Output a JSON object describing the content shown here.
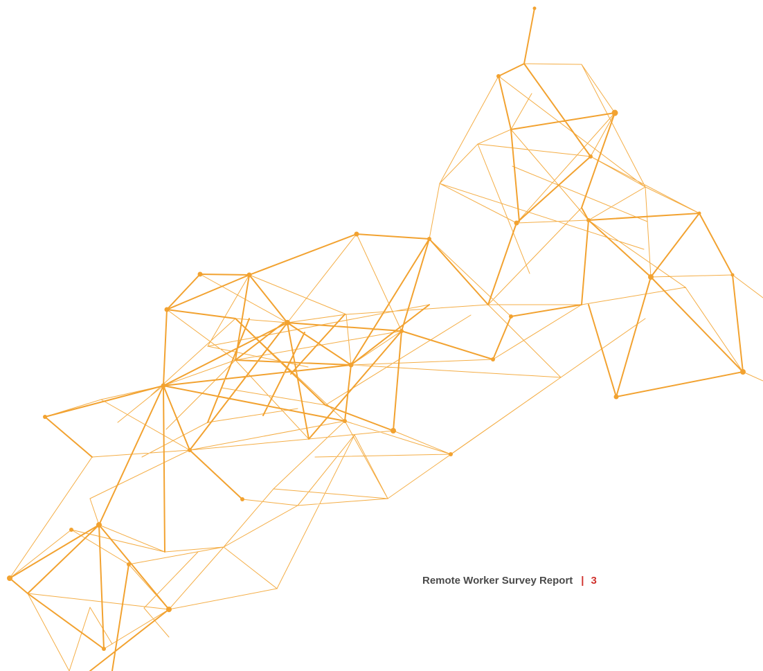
{
  "footer": {
    "title": "Remote Worker Survey Report",
    "separator": "|",
    "page_number": "3"
  }
}
